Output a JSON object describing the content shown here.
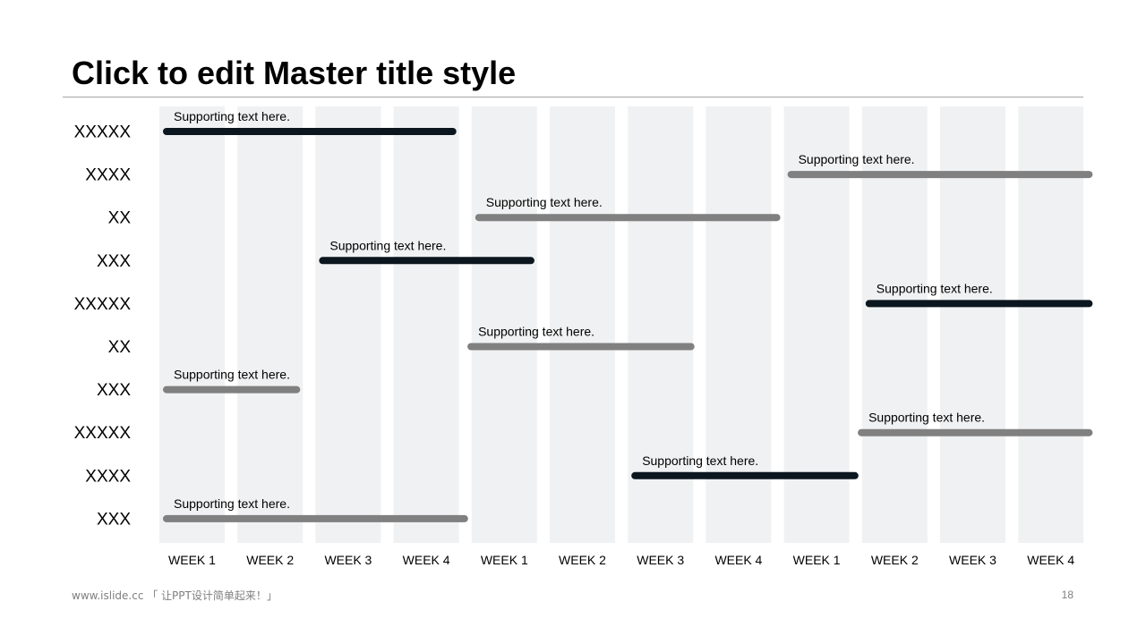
{
  "slide": {
    "title": "Click to edit Master title style",
    "footer_text": "www.islide.cc 「 让PPT设计简单起来！」",
    "page_number": "18"
  },
  "colors": {
    "column_fill": "#f0f1f2",
    "bar_dark": "#0b161f",
    "bar_gray": "#808080",
    "rule": "#a6a6a6",
    "footer": "#7f7f7f"
  },
  "chart_data": {
    "type": "bar",
    "orientation": "horizontal",
    "x_categories": [
      "WEEK 1",
      "WEEK 2",
      "WEEK 3",
      "WEEK 4",
      "WEEK 1",
      "WEEK 2",
      "WEEK 3",
      "WEEK 4",
      "WEEK 1",
      "WEEK 2",
      "WEEK 3",
      "WEEK 4"
    ],
    "x_unit": "week",
    "xlim": [
      0,
      12
    ],
    "rows": [
      {
        "label": "XXXXX",
        "start": 0.0,
        "end": 3.85,
        "style": "dark",
        "text": "Supporting text here."
      },
      {
        "label": "XXXX",
        "start": 8.0,
        "end": 12.0,
        "style": "gray",
        "text": "Supporting text here."
      },
      {
        "label": "XX",
        "start": 4.0,
        "end": 8.0,
        "style": "gray",
        "text": "Supporting text here."
      },
      {
        "label": "XXX",
        "start": 2.0,
        "end": 4.85,
        "style": "dark",
        "text": "Supporting text here."
      },
      {
        "label": "XXXXX",
        "start": 9.0,
        "end": 12.0,
        "style": "dark",
        "text": "Supporting text here."
      },
      {
        "label": "XX",
        "start": 3.9,
        "end": 6.9,
        "style": "gray",
        "text": "Supporting text here."
      },
      {
        "label": "XXX",
        "start": 0.0,
        "end": 1.85,
        "style": "gray",
        "text": "Supporting text here."
      },
      {
        "label": "XXXXX",
        "start": 8.9,
        "end": 12.0,
        "style": "gray",
        "text": "Supporting text here."
      },
      {
        "label": "XXXX",
        "start": 6.0,
        "end": 9.0,
        "style": "dark",
        "text": "Supporting text here."
      },
      {
        "label": "XXX",
        "start": 0.0,
        "end": 4.0,
        "style": "gray",
        "text": "Supporting text here."
      }
    ],
    "grid": false,
    "legend": "none"
  }
}
